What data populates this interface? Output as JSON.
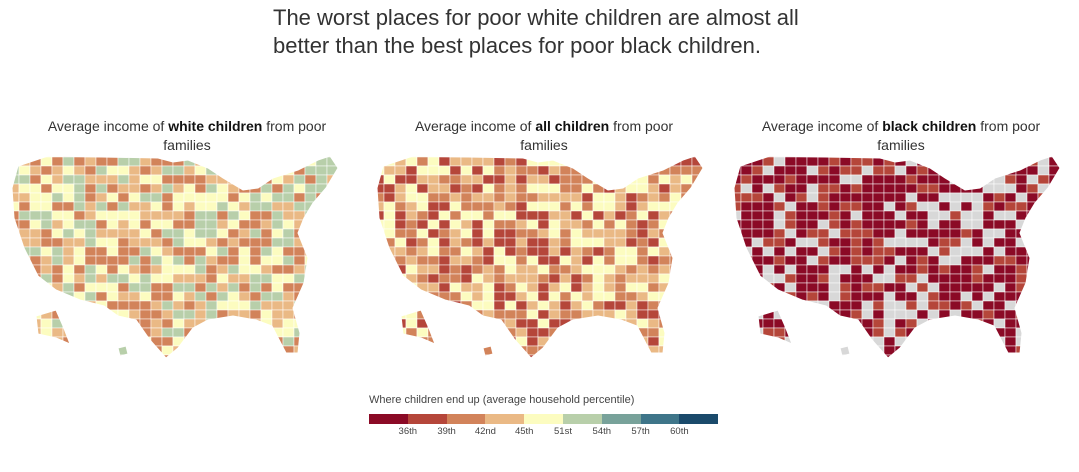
{
  "headline": "The worst places for poor white children are almost all better than the best places for poor black children.",
  "panels": [
    {
      "pre": "Average income of ",
      "bold": "white children",
      "post": " from poor families"
    },
    {
      "pre": "Average income of ",
      "bold": "all children",
      "post": " from poor families"
    },
    {
      "pre": "Average income of ",
      "bold": "black children",
      "post": " from poor families"
    }
  ],
  "legend": {
    "title": "Where children end up (average household percentile)",
    "colors": [
      "#8b0a26",
      "#b5463a",
      "#d2835a",
      "#eab985",
      "#fcfcc0",
      "#b8cfaa",
      "#78a29a",
      "#3e7589",
      "#1a4a6b"
    ],
    "ticks": [
      "36th",
      "39th",
      "42nd",
      "45th",
      "51st",
      "54th",
      "57th",
      "60th"
    ]
  },
  "maps": [
    {
      "name": "white",
      "dominant": [
        "#fcfcc0",
        "#eab985",
        "#b8cfaa",
        "#d2835a"
      ]
    },
    {
      "name": "all",
      "dominant": [
        "#eab985",
        "#d2835a",
        "#fcfcc0",
        "#b5463a"
      ]
    },
    {
      "name": "black",
      "dominant": [
        "#8b0a26",
        "#8b0a26",
        "#b5463a",
        "#d8d8d8"
      ]
    }
  ]
}
